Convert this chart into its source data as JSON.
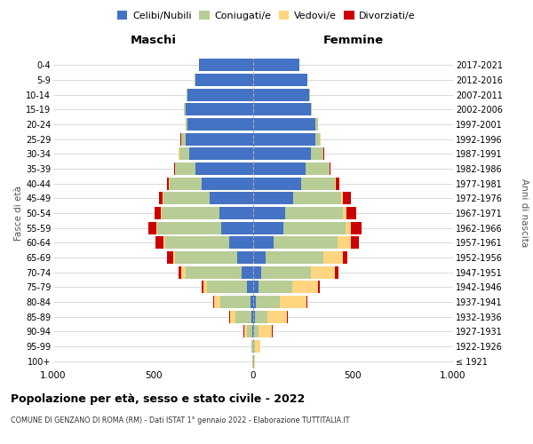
{
  "age_groups": [
    "100+",
    "95-99",
    "90-94",
    "85-89",
    "80-84",
    "75-79",
    "70-74",
    "65-69",
    "60-64",
    "55-59",
    "50-54",
    "45-49",
    "40-44",
    "35-39",
    "30-34",
    "25-29",
    "20-24",
    "15-19",
    "10-14",
    "5-9",
    "0-4"
  ],
  "birth_years": [
    "≤ 1921",
    "1922-1926",
    "1927-1931",
    "1932-1936",
    "1937-1941",
    "1942-1946",
    "1947-1951",
    "1952-1956",
    "1957-1961",
    "1962-1966",
    "1967-1971",
    "1972-1976",
    "1977-1981",
    "1982-1986",
    "1987-1991",
    "1992-1996",
    "1997-2001",
    "2002-2006",
    "2007-2011",
    "2012-2016",
    "2017-2021"
  ],
  "maschi": {
    "celibi": [
      2,
      2,
      5,
      10,
      15,
      30,
      60,
      80,
      120,
      160,
      170,
      220,
      260,
      290,
      320,
      340,
      330,
      340,
      330,
      290,
      270
    ],
    "coniugati": [
      2,
      5,
      25,
      80,
      150,
      200,
      280,
      310,
      320,
      320,
      290,
      230,
      160,
      100,
      50,
      20,
      10,
      5,
      5,
      2,
      0
    ],
    "vedovi": [
      0,
      2,
      15,
      25,
      30,
      20,
      20,
      10,
      10,
      5,
      3,
      3,
      2,
      2,
      2,
      2,
      0,
      0,
      0,
      0,
      0
    ],
    "divorziati": [
      0,
      0,
      2,
      5,
      5,
      10,
      15,
      30,
      40,
      40,
      30,
      20,
      10,
      5,
      3,
      2,
      0,
      0,
      0,
      0,
      0
    ]
  },
  "femmine": {
    "nubili": [
      2,
      2,
      5,
      10,
      15,
      25,
      40,
      60,
      100,
      150,
      160,
      200,
      240,
      260,
      290,
      310,
      310,
      290,
      280,
      270,
      230
    ],
    "coniugate": [
      2,
      5,
      20,
      60,
      120,
      170,
      250,
      290,
      320,
      310,
      290,
      240,
      170,
      120,
      60,
      25,
      15,
      5,
      5,
      2,
      0
    ],
    "vedove": [
      5,
      30,
      70,
      100,
      130,
      130,
      120,
      100,
      70,
      30,
      15,
      8,
      5,
      3,
      2,
      2,
      0,
      0,
      0,
      0,
      0
    ],
    "divorziate": [
      0,
      0,
      2,
      5,
      8,
      10,
      15,
      20,
      40,
      50,
      50,
      40,
      15,
      5,
      3,
      2,
      0,
      0,
      0,
      0,
      0
    ]
  },
  "colors": {
    "celibi_nubili": "#4472C4",
    "coniugati": "#B8CC96",
    "vedovi": "#FFD580",
    "divorziati": "#CC0000"
  },
  "xlim": 1000,
  "title": "Popolazione per età, sesso e stato civile - 2022",
  "subtitle": "COMUNE DI GENZANO DI ROMA (RM) - Dati ISTAT 1° gennaio 2022 - Elaborazione TUTTITALIA.IT",
  "ylabel_left": "Fasce di età",
  "ylabel_right": "Anni di nascita",
  "xlabel_left": "Maschi",
  "xlabel_right": "Femmine",
  "bg_color": "#ffffff",
  "grid_color": "#cccccc"
}
